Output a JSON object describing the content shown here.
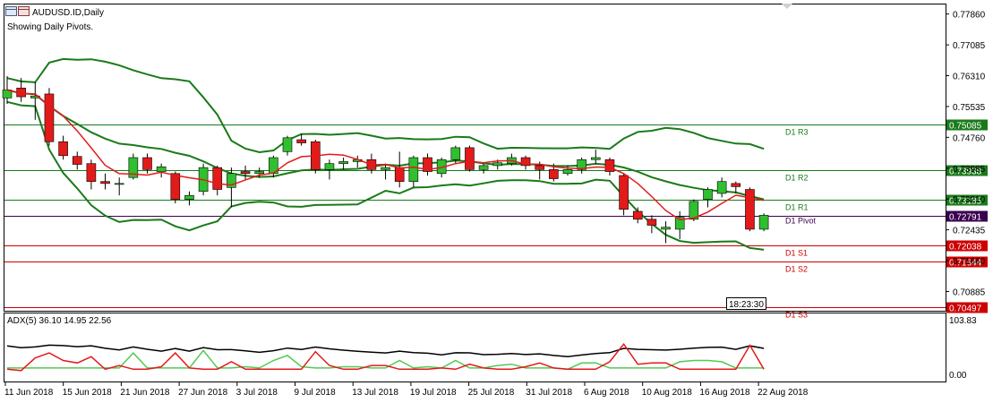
{
  "header": {
    "symbol": "AUDUSD.ID,Daily",
    "note": "Showing Daily Pivots."
  },
  "colors": {
    "bull": "#2fbf2f",
    "bear": "#e31a1a",
    "band": "#1a7a1a",
    "ma": "#e31a1a",
    "resistance": "#1a7a1a",
    "support": "#cc0000",
    "pivot": "#3a0050",
    "adx": "#000000",
    "plus_di": "#55c855",
    "minus_di": "#e31a1a"
  },
  "time_label": "18:23:30",
  "price_axis": {
    "ticks": [
      "0.77860",
      "0.77085",
      "0.76310",
      "0.75535",
      "0.74760",
      "0.73985",
      "0.73210",
      "0.72435",
      "0.71660",
      "0.70885"
    ]
  },
  "levels": [
    {
      "name": "D1 R3",
      "value": 0.75085,
      "tag": "0.75085",
      "type": "resistance"
    },
    {
      "name": "D1 R2",
      "value": 0.73938,
      "tag": "0.73938",
      "type": "resistance"
    },
    {
      "name": "D1 R1",
      "value": 0.73185,
      "tag": "0.73185",
      "type": "resistance"
    },
    {
      "name": "D1 Pivot",
      "value": 0.72791,
      "tag": "0.72791",
      "type": "pivot"
    },
    {
      "name": "D1 S1",
      "value": 0.72038,
      "tag": "0.72038",
      "type": "support"
    },
    {
      "name": "D1 S2",
      "value": 0.71644,
      "tag": "0.71644",
      "type": "support"
    },
    {
      "name": "D1 S3",
      "value": 0.70497,
      "tag": "0.70497",
      "type": "support"
    }
  ],
  "chart_data": {
    "type": "candlestick",
    "x_labels": [
      "11 Jun 2018",
      "15 Jun 2018",
      "21 Jun 2018",
      "27 Jun 2018",
      "3 Jul 2018",
      "9 Jul 2018",
      "13 Jul 2018",
      "19 Jul 2018",
      "25 Jul 2018",
      "31 Jul 2018",
      "6 Aug 2018",
      "10 Aug 2018",
      "16 Aug 2018",
      "22 Aug 2018"
    ],
    "ylim": [
      0.704,
      0.781
    ],
    "candles": [
      {
        "d": "11 Jun",
        "o": 0.7575,
        "h": 0.763,
        "l": 0.756,
        "c": 0.7595
      },
      {
        "d": "12 Jun",
        "o": 0.76,
        "h": 0.7625,
        "l": 0.7565,
        "c": 0.7578
      },
      {
        "d": "13 Jun",
        "o": 0.7575,
        "h": 0.7615,
        "l": 0.752,
        "c": 0.758
      },
      {
        "d": "14 Jun",
        "o": 0.7585,
        "h": 0.76,
        "l": 0.7455,
        "c": 0.7465
      },
      {
        "d": "15 Jun",
        "o": 0.7465,
        "h": 0.748,
        "l": 0.742,
        "c": 0.743
      },
      {
        "d": "18 Jun",
        "o": 0.7428,
        "h": 0.744,
        "l": 0.7395,
        "c": 0.7408
      },
      {
        "d": "19 Jun",
        "o": 0.741,
        "h": 0.742,
        "l": 0.7345,
        "c": 0.7365
      },
      {
        "d": "20 Jun",
        "o": 0.7365,
        "h": 0.7385,
        "l": 0.7345,
        "c": 0.736
      },
      {
        "d": "21 Jun",
        "o": 0.736,
        "h": 0.7375,
        "l": 0.733,
        "c": 0.736
      },
      {
        "d": "22 Jun",
        "o": 0.7375,
        "h": 0.7435,
        "l": 0.737,
        "c": 0.7425
      },
      {
        "d": "25 Jun",
        "o": 0.7425,
        "h": 0.7435,
        "l": 0.7385,
        "c": 0.7395
      },
      {
        "d": "26 Jun",
        "o": 0.739,
        "h": 0.741,
        "l": 0.7375,
        "c": 0.7402
      },
      {
        "d": "27 Jun",
        "o": 0.7385,
        "h": 0.739,
        "l": 0.731,
        "c": 0.732
      },
      {
        "d": "28 Jun",
        "o": 0.732,
        "h": 0.734,
        "l": 0.7305,
        "c": 0.733
      },
      {
        "d": "29 Jun",
        "o": 0.734,
        "h": 0.741,
        "l": 0.733,
        "c": 0.74
      },
      {
        "d": "2 Jul",
        "o": 0.74,
        "h": 0.7405,
        "l": 0.733,
        "c": 0.7345
      },
      {
        "d": "3 Jul",
        "o": 0.735,
        "h": 0.74,
        "l": 0.73,
        "c": 0.7385
      },
      {
        "d": "4 Jul",
        "o": 0.739,
        "h": 0.7405,
        "l": 0.737,
        "c": 0.7385
      },
      {
        "d": "5 Jul",
        "o": 0.7385,
        "h": 0.74,
        "l": 0.7375,
        "c": 0.739
      },
      {
        "d": "6 Jul",
        "o": 0.7385,
        "h": 0.743,
        "l": 0.7375,
        "c": 0.7425
      },
      {
        "d": "9 Jul",
        "o": 0.744,
        "h": 0.748,
        "l": 0.743,
        "c": 0.7475
      },
      {
        "d": "10 Jul",
        "o": 0.747,
        "h": 0.7485,
        "l": 0.7455,
        "c": 0.7462
      },
      {
        "d": "11 Jul",
        "o": 0.7465,
        "h": 0.747,
        "l": 0.7385,
        "c": 0.7395
      },
      {
        "d": "12 Jul",
        "o": 0.7395,
        "h": 0.742,
        "l": 0.737,
        "c": 0.741
      },
      {
        "d": "13 Jul",
        "o": 0.741,
        "h": 0.7425,
        "l": 0.7395,
        "c": 0.7415
      },
      {
        "d": "16 Jul",
        "o": 0.7415,
        "h": 0.743,
        "l": 0.74,
        "c": 0.742
      },
      {
        "d": "17 Jul",
        "o": 0.742,
        "h": 0.7435,
        "l": 0.7385,
        "c": 0.7395
      },
      {
        "d": "18 Jul",
        "o": 0.7395,
        "h": 0.741,
        "l": 0.737,
        "c": 0.74
      },
      {
        "d": "19 Jul",
        "o": 0.74,
        "h": 0.744,
        "l": 0.735,
        "c": 0.7365
      },
      {
        "d": "20 Jul",
        "o": 0.7365,
        "h": 0.743,
        "l": 0.735,
        "c": 0.7425
      },
      {
        "d": "23 Jul",
        "o": 0.7425,
        "h": 0.7435,
        "l": 0.738,
        "c": 0.739
      },
      {
        "d": "24 Jul",
        "o": 0.7385,
        "h": 0.7425,
        "l": 0.7375,
        "c": 0.742
      },
      {
        "d": "25 Jul",
        "o": 0.742,
        "h": 0.7455,
        "l": 0.741,
        "c": 0.745
      },
      {
        "d": "26 Jul",
        "o": 0.745,
        "h": 0.7455,
        "l": 0.739,
        "c": 0.7395
      },
      {
        "d": "27 Jul",
        "o": 0.7395,
        "h": 0.741,
        "l": 0.7385,
        "c": 0.7405
      },
      {
        "d": "30 Jul",
        "o": 0.7405,
        "h": 0.742,
        "l": 0.7395,
        "c": 0.7412
      },
      {
        "d": "31 Jul",
        "o": 0.741,
        "h": 0.7435,
        "l": 0.7405,
        "c": 0.7425
      },
      {
        "d": "1 Aug",
        "o": 0.7425,
        "h": 0.743,
        "l": 0.7395,
        "c": 0.7405
      },
      {
        "d": "2 Aug",
        "o": 0.7405,
        "h": 0.7415,
        "l": 0.737,
        "c": 0.7395
      },
      {
        "d": "3 Aug",
        "o": 0.7395,
        "h": 0.741,
        "l": 0.7365,
        "c": 0.7372
      },
      {
        "d": "6 Aug",
        "o": 0.7385,
        "h": 0.7405,
        "l": 0.738,
        "c": 0.7395
      },
      {
        "d": "7 Aug",
        "o": 0.7395,
        "h": 0.7425,
        "l": 0.7385,
        "c": 0.742
      },
      {
        "d": "8 Aug",
        "o": 0.742,
        "h": 0.7445,
        "l": 0.741,
        "c": 0.7425
      },
      {
        "d": "9 Aug",
        "o": 0.742,
        "h": 0.7425,
        "l": 0.738,
        "c": 0.739
      },
      {
        "d": "10 Aug",
        "o": 0.738,
        "h": 0.7385,
        "l": 0.728,
        "c": 0.7295
      },
      {
        "d": "13 Aug",
        "o": 0.729,
        "h": 0.73,
        "l": 0.726,
        "c": 0.727
      },
      {
        "d": "14 Aug",
        "o": 0.727,
        "h": 0.728,
        "l": 0.7235,
        "c": 0.7255
      },
      {
        "d": "15 Aug",
        "o": 0.7245,
        "h": 0.7265,
        "l": 0.721,
        "c": 0.725
      },
      {
        "d": "16 Aug",
        "o": 0.7245,
        "h": 0.729,
        "l": 0.722,
        "c": 0.7275
      },
      {
        "d": "17 Aug",
        "o": 0.727,
        "h": 0.732,
        "l": 0.7265,
        "c": 0.7315
      },
      {
        "d": "20 Aug",
        "o": 0.732,
        "h": 0.735,
        "l": 0.73,
        "c": 0.7345
      },
      {
        "d": "21 Aug",
        "o": 0.7335,
        "h": 0.7375,
        "l": 0.7325,
        "c": 0.7365
      },
      {
        "d": "22 Aug",
        "o": 0.736,
        "h": 0.7365,
        "l": 0.7335,
        "c": 0.7352
      },
      {
        "d": "23 Aug",
        "o": 0.7345,
        "h": 0.735,
        "l": 0.724,
        "c": 0.7245
      },
      {
        "d": "24 Aug",
        "o": 0.7245,
        "h": 0.7285,
        "l": 0.724,
        "c": 0.728
      }
    ],
    "indicator": {
      "label": "ADX(5) 36.10 14.95 22.56",
      "ylim": [
        0,
        103.83
      ],
      "ticks": [
        "103.83",
        "0.00"
      ]
    }
  }
}
